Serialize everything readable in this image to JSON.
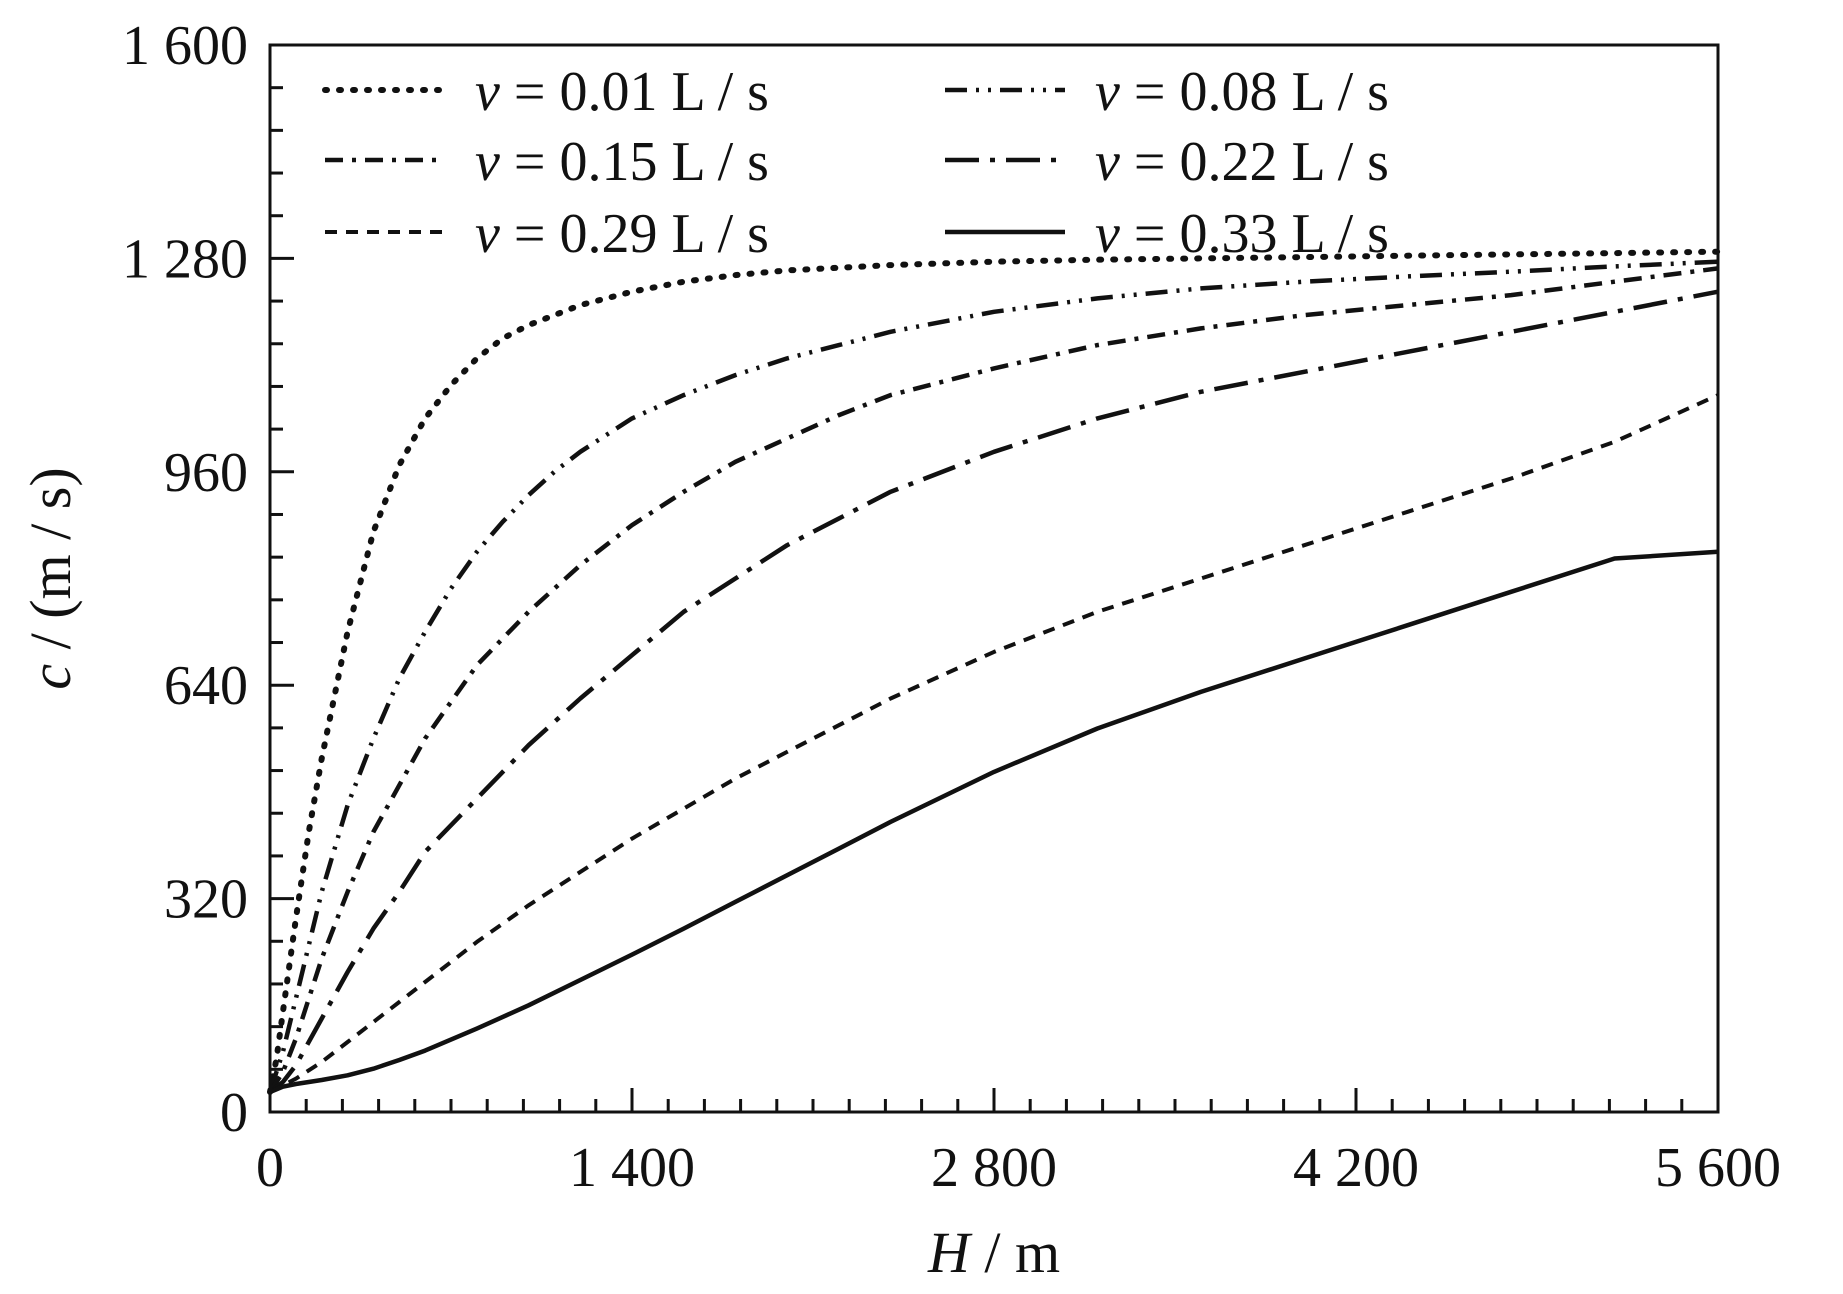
{
  "chart_data": {
    "type": "line",
    "xlabel": {
      "var": "H",
      "unit": " / m"
    },
    "ylabel": {
      "var": "c",
      "unit": " / (m / s)"
    },
    "xlim": [
      0,
      5600
    ],
    "ylim": [
      0,
      1600
    ],
    "xticks": [
      0,
      1400,
      2800,
      4200,
      5600
    ],
    "xtick_labels": [
      "0",
      "1 400",
      "2 800",
      "4 200",
      "5 600"
    ],
    "xminor_step": 140,
    "yticks": [
      0,
      320,
      640,
      960,
      1280,
      1600
    ],
    "ytick_labels": [
      "0",
      "320",
      "640",
      "960",
      "1 280",
      "1 600"
    ],
    "yminor_step": 64,
    "grid": false,
    "legend": {
      "position": "top",
      "columns": 2
    },
    "series": [
      {
        "name": "v = 0.01 L / s",
        "var": "v",
        "label_rest": " = 0.01 L / s",
        "style": "dotted",
        "x": [
          0,
          25,
          50,
          100,
          150,
          200,
          300,
          400,
          500,
          600,
          700,
          800,
          900,
          1000,
          1200,
          1400,
          1600,
          1800,
          2000,
          2400,
          2800,
          3200,
          3600,
          4000,
          4400,
          4800,
          5200,
          5600
        ],
        "y": [
          30,
          80,
          150,
          290,
          420,
          530,
          720,
          870,
          970,
          1040,
          1090,
          1130,
          1160,
          1180,
          1210,
          1230,
          1245,
          1255,
          1262,
          1270,
          1275,
          1278,
          1280,
          1282,
          1284,
          1286,
          1288,
          1290
        ]
      },
      {
        "name": "v = 0.08 L / s",
        "var": "v",
        "label_rest": " = 0.08 L / s",
        "style": "dash-dot-dot",
        "x": [
          0,
          50,
          100,
          200,
          300,
          400,
          500,
          600,
          700,
          800,
          900,
          1000,
          1100,
          1200,
          1400,
          1600,
          1800,
          2000,
          2200,
          2400,
          2800,
          3200,
          3600,
          4000,
          4400,
          4800,
          5200,
          5600
        ],
        "y": [
          30,
          90,
          170,
          330,
          460,
          560,
          650,
          720,
          785,
          840,
          885,
          925,
          960,
          990,
          1040,
          1075,
          1105,
          1130,
          1150,
          1170,
          1200,
          1220,
          1235,
          1245,
          1253,
          1260,
          1268,
          1275
        ]
      },
      {
        "name": "v = 0.15 L / s",
        "var": "v",
        "label_rest": " = 0.15 L / s",
        "style": "dash-dot",
        "x": [
          0,
          50,
          100,
          200,
          300,
          400,
          500,
          600,
          700,
          800,
          1000,
          1200,
          1400,
          1600,
          1800,
          2000,
          2200,
          2400,
          2800,
          3200,
          3600,
          4000,
          4400,
          4800,
          5200,
          5600
        ],
        "y": [
          30,
          60,
          110,
          230,
          330,
          420,
          490,
          560,
          615,
          670,
          750,
          820,
          880,
          930,
          975,
          1010,
          1045,
          1075,
          1115,
          1150,
          1175,
          1195,
          1210,
          1225,
          1245,
          1265
        ]
      },
      {
        "name": "v = 0.22 L / s",
        "var": "v",
        "label_rest": " = 0.22 L / s",
        "style": "long-dash-dot",
        "x": [
          0,
          50,
          100,
          200,
          300,
          400,
          500,
          600,
          800,
          1000,
          1200,
          1400,
          1600,
          1800,
          2000,
          2200,
          2400,
          2800,
          3200,
          3600,
          4000,
          4400,
          4800,
          5200,
          5600
        ],
        "y": [
          30,
          45,
          70,
          140,
          210,
          275,
          330,
          390,
          470,
          550,
          620,
          685,
          750,
          800,
          850,
          890,
          930,
          990,
          1040,
          1080,
          1110,
          1140,
          1170,
          1200,
          1230
        ]
      },
      {
        "name": "v = 0.29 L / s",
        "var": "v",
        "label_rest": " = 0.29 L / s",
        "style": "dashed",
        "x": [
          0,
          50,
          100,
          200,
          300,
          400,
          500,
          600,
          700,
          800,
          1000,
          1200,
          1400,
          1600,
          1800,
          2000,
          2200,
          2400,
          2800,
          3200,
          3600,
          4000,
          4400,
          4800,
          5200,
          5600
        ],
        "y": [
          30,
          40,
          50,
          75,
          105,
          135,
          165,
          195,
          225,
          255,
          310,
          360,
          410,
          455,
          500,
          540,
          580,
          620,
          690,
          750,
          800,
          850,
          900,
          950,
          1005,
          1075
        ]
      },
      {
        "name": "v = 0.33 L / s",
        "var": "v",
        "label_rest": " = 0.33 L / s",
        "style": "solid",
        "x": [
          0,
          50,
          100,
          200,
          300,
          400,
          500,
          600,
          800,
          1000,
          1200,
          1400,
          1600,
          1800,
          2000,
          2200,
          2400,
          2800,
          3200,
          3600,
          4000,
          4400,
          4800,
          5200,
          5600
        ],
        "y": [
          30,
          38,
          42,
          48,
          55,
          65,
          78,
          92,
          125,
          160,
          198,
          236,
          275,
          315,
          355,
          395,
          435,
          510,
          575,
          630,
          680,
          730,
          780,
          830,
          840
        ]
      }
    ]
  }
}
